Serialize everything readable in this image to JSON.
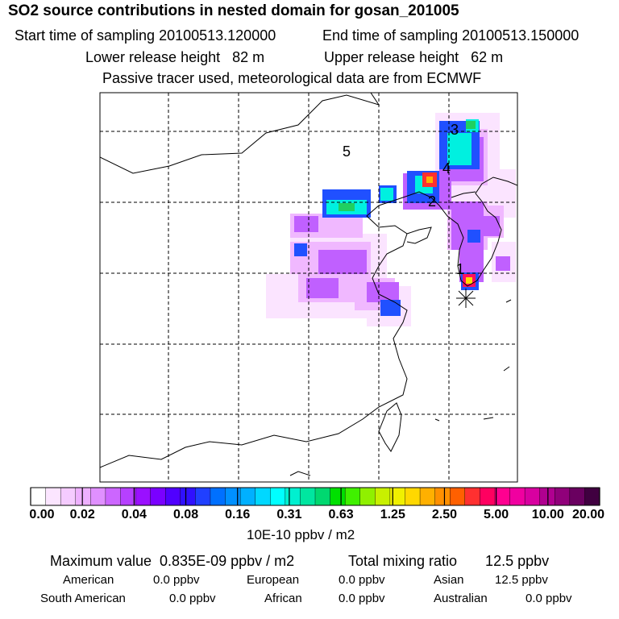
{
  "header": {
    "title": "SO2 source contributions in nested domain for gosan_201005",
    "start_sampling": "Start time of sampling 20100513.120000",
    "end_sampling": "End time of sampling 20100513.150000",
    "lower_release": "Lower release height   82 m",
    "upper_release": "Upper release height   62 m",
    "tracer_note": "Passive tracer used, meteorological data are from ECMWF"
  },
  "chart_data": {
    "type": "heatmap",
    "title": "SO2 source contributions in nested domain for gosan_201005",
    "region_labels": [
      "1",
      "2",
      "3",
      "4",
      "5"
    ],
    "receptor_marker": "asterisk",
    "grid": true,
    "colorbar": {
      "tick_labels": [
        "0.00",
        "0.02",
        "0.04",
        "0.08",
        "0.16",
        "0.31",
        "0.63",
        "1.25",
        "2.50",
        "5.00",
        "10.00",
        "20.00"
      ],
      "colors": [
        "#ffffff",
        "#fbe5ff",
        "#f5cbff",
        "#eeb0ff",
        "#e090ff",
        "#cc66ff",
        "#b640ff",
        "#9a10ff",
        "#7a00ff",
        "#5000ff",
        "#3010ff",
        "#2040ff",
        "#0070ff",
        "#0090ff",
        "#00b0ff",
        "#00d8ff",
        "#00ffff",
        "#00f0d0",
        "#00e6a0",
        "#00d870",
        "#00e000",
        "#40f000",
        "#90f000",
        "#c8f000",
        "#f0f000",
        "#ffd800",
        "#ffb000",
        "#ff9000",
        "#ff6000",
        "#ff3030",
        "#ff0060",
        "#ff0090",
        "#f000a0",
        "#d800a0",
        "#b00090",
        "#90007a",
        "#6a0060",
        "#400040"
      ],
      "units": "10E-10 ppbv / m2"
    },
    "field": [
      {
        "region": "3",
        "lat": 40.8,
        "lon": 128.4,
        "value": 0.5
      },
      {
        "region": "3",
        "lat": 39.8,
        "lon": 127.6,
        "value": 0.3
      },
      {
        "region": "4",
        "lat": 38.7,
        "lon": 126.7,
        "value": 3.0
      },
      {
        "region": "4",
        "lat": 38.3,
        "lon": 126.2,
        "value": 0.2
      },
      {
        "region": "2",
        "lat": 37.7,
        "lon": 124.8,
        "value": 0.3
      },
      {
        "region": "2",
        "lat": 36.5,
        "lon": 127.2,
        "value": 0.08
      },
      {
        "region": "1",
        "lat": 34.2,
        "lon": 126.8,
        "value": 4.0
      },
      {
        "region": "5",
        "lat": 37.6,
        "lon": 120.5,
        "value": 0.15
      },
      {
        "region": "5",
        "lat": 35.7,
        "lon": 118.0,
        "value": 0.06
      },
      {
        "region": "5",
        "lat": 33.0,
        "lon": 122.0,
        "value": 0.06
      }
    ]
  },
  "summary": {
    "max_value": "Maximum value  0.835E-09 ppbv / m2",
    "total_mixing": "Total mixing ratio       12.5 ppbv",
    "american_label": "American",
    "american_value": "0.0 ppbv",
    "european_label": "European",
    "european_value": "0.0 ppbv",
    "asian_label": "Asian",
    "asian_value": "12.5 ppbv",
    "south_american_label": "South American",
    "south_american_value": "0.0 ppbv",
    "african_label": "African",
    "african_value": "0.0 ppbv",
    "australian_label": "Australian",
    "australian_value": "0.0 ppbv"
  }
}
